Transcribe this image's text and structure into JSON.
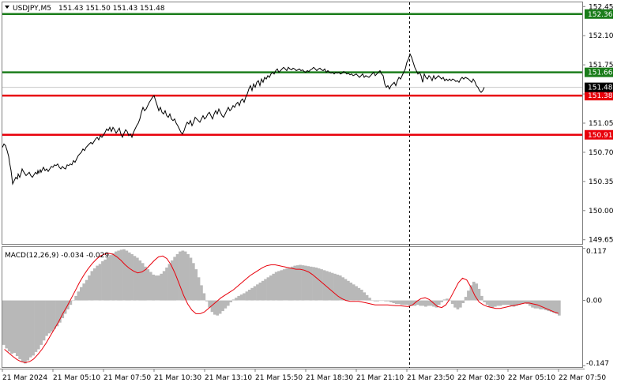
{
  "header": {
    "symbol_label": "USDJPY,M5",
    "ohlc_label": "151.43 151.50 151.43 151.48",
    "macd_label": "MACD(12,26,9) -0.034 -0.029"
  },
  "colors": {
    "price_line": "#000000",
    "support_line": "#e8000b",
    "resistance_line": "#1b7d1b",
    "macd_hist": "#b8b8b8",
    "macd_signal": "#e8000b",
    "grid_border": "#808080"
  },
  "chart_data": [
    {
      "type": "line",
      "symbol": "USDJPY",
      "timeframe": "M5",
      "y_ticks": [
        "152.45",
        "152.10",
        "151.75",
        "151.40",
        "151.05",
        "150.70",
        "150.35",
        "150.00",
        "149.65"
      ],
      "ylim": [
        149.6,
        152.5
      ],
      "x_ticks": [
        "21 Mar 2024",
        "21 Mar 05:10",
        "21 Mar 07:50",
        "21 Mar 10:30",
        "21 Mar 13:10",
        "21 Mar 15:50",
        "21 Mar 18:30",
        "21 Mar 21:10",
        "21 Mar 23:50",
        "22 Mar 02:30",
        "22 Mar 05:10",
        "22 Mar 07:50"
      ],
      "current_price_label": "151.48",
      "current_price": 151.48,
      "levels": [
        {
          "value": 152.36,
          "label": "152.36",
          "kind": "resistance"
        },
        {
          "value": 151.66,
          "label": "151.66",
          "kind": "resistance"
        },
        {
          "value": 151.38,
          "label": "151.38",
          "kind": "support"
        },
        {
          "value": 150.91,
          "label": "150.91",
          "kind": "support"
        }
      ],
      "x": [
        0,
        2,
        4,
        6,
        8,
        9,
        11,
        12,
        13,
        15,
        17,
        19,
        20,
        22,
        24,
        25,
        26,
        28,
        30,
        32,
        34,
        36,
        38,
        40,
        42,
        44,
        45,
        46,
        47,
        48,
        49,
        50,
        52,
        54,
        56,
        58,
        60,
        62,
        64,
        66,
        68,
        70,
        72,
        74,
        76,
        78,
        80,
        82,
        84,
        86,
        88,
        90,
        92,
        94,
        96,
        98,
        100,
        102,
        104,
        106,
        108,
        110,
        112,
        114,
        116,
        118,
        120,
        122,
        124,
        126,
        128,
        130,
        132,
        134,
        136,
        138,
        140,
        142,
        144,
        146,
        148,
        150,
        152,
        154,
        156,
        158,
        160,
        162,
        164,
        166,
        168,
        170,
        172,
        174,
        176,
        178,
        180,
        182,
        184,
        186,
        188,
        190,
        192,
        194,
        196,
        198,
        200,
        202,
        204,
        206,
        208,
        210,
        212,
        214,
        216,
        218,
        220,
        222,
        224,
        226,
        228,
        230,
        232,
        234,
        236,
        238,
        240,
        242,
        244,
        246,
        248,
        250,
        252,
        254,
        256,
        258,
        260,
        262,
        264,
        266,
        268,
        270,
        272,
        274,
        276,
        278,
        280,
        282,
        284,
        286,
        288,
        290,
        292,
        294,
        296,
        298,
        300,
        302,
        304,
        306,
        308,
        310,
        312,
        314,
        316,
        318,
        320,
        322,
        324,
        326,
        328,
        330,
        332,
        334,
        336,
        338,
        340,
        342,
        344,
        346,
        348,
        350,
        352,
        354,
        356,
        358,
        360,
        362,
        364,
        366,
        368,
        370,
        372,
        374,
        376,
        378,
        380,
        382,
        384,
        386,
        388,
        390,
        392,
        394,
        396,
        398,
        400,
        402,
        404,
        406,
        408,
        410,
        412,
        414,
        416,
        418,
        420,
        422,
        424,
        426,
        428,
        430,
        432,
        434,
        436,
        438,
        440,
        442,
        444,
        446,
        448,
        450,
        452,
        454,
        456,
        458,
        460,
        462,
        464,
        466,
        468,
        470,
        472,
        474,
        476,
        478,
        480,
        482,
        484,
        486,
        488,
        490,
        492,
        494,
        496,
        498,
        500,
        502,
        504,
        506,
        508,
        510,
        512,
        514,
        516,
        518,
        520,
        522,
        524,
        526,
        528,
        530,
        532,
        534,
        536,
        538,
        540,
        542,
        544,
        546,
        548,
        550,
        552,
        554,
        556,
        558,
        560,
        562,
        564,
        566,
        568,
        570,
        572,
        574,
        576,
        578,
        580,
        582,
        584,
        586,
        588,
        590,
        592,
        594,
        596,
        598,
        600,
        602,
        604,
        606,
        608,
        610,
        612,
        614,
        616,
        618,
        620,
        622,
        624,
        626,
        628,
        630,
        632,
        634,
        636,
        638,
        640,
        642,
        644,
        646,
        648,
        650,
        652,
        654,
        656,
        658,
        660,
        662,
        664,
        666,
        668,
        670,
        672,
        674,
        676,
        678,
        680,
        682,
        684,
        686,
        688,
        690,
        692,
        694,
        696,
        698,
        700,
        702,
        704,
        706,
        708,
        710,
        712,
        714,
        716,
        718,
        720,
        722,
        724,
        726
      ],
      "price": [
        150.76,
        150.8,
        150.78,
        150.72,
        150.65,
        150.58,
        150.48,
        150.4,
        150.32,
        150.36,
        150.4,
        150.38,
        150.44,
        150.4,
        150.46,
        150.5,
        150.48,
        150.45,
        150.42,
        150.44,
        150.46,
        150.42,
        150.4,
        150.43,
        150.46,
        150.44,
        150.48,
        150.45,
        150.47,
        150.49,
        150.46,
        150.48,
        150.52,
        150.48,
        150.5,
        150.47,
        150.5,
        150.53,
        150.52,
        150.55,
        150.54,
        150.56,
        150.52,
        150.5,
        150.53,
        150.51,
        150.5,
        150.55,
        150.54,
        150.56,
        150.55,
        150.6,
        150.58,
        150.62,
        150.66,
        150.68,
        150.7,
        150.74,
        150.72,
        150.76,
        150.78,
        150.8,
        150.82,
        150.8,
        150.83,
        150.86,
        150.88,
        150.85,
        150.9,
        150.88,
        150.91,
        150.94,
        150.98,
        150.96,
        151.0,
        150.95,
        151.0,
        150.97,
        150.93,
        150.96,
        150.99,
        150.92,
        150.88,
        150.93,
        150.97,
        150.95,
        150.9,
        150.92,
        150.88,
        150.94,
        150.98,
        151.02,
        151.05,
        151.1,
        151.18,
        151.24,
        151.2,
        151.22,
        151.26,
        151.3,
        151.33,
        151.36,
        151.38,
        151.32,
        151.26,
        151.2,
        151.24,
        151.18,
        151.16,
        151.2,
        151.14,
        151.12,
        151.16,
        151.1,
        151.08,
        151.1,
        151.05,
        151.02,
        150.98,
        150.94,
        150.92,
        150.96,
        151.02,
        151.06,
        151.04,
        151.08,
        151.02,
        151.06,
        151.12,
        151.1,
        151.08,
        151.06,
        151.1,
        151.14,
        151.1,
        151.12,
        151.16,
        151.18,
        151.14,
        151.1,
        151.16,
        151.2,
        151.16,
        151.22,
        151.18,
        151.14,
        151.12,
        151.16,
        151.2,
        151.24,
        151.2,
        151.22,
        151.26,
        151.24,
        151.28,
        151.3,
        151.26,
        151.32,
        151.34,
        151.3,
        151.36,
        151.4,
        151.46,
        151.5,
        151.44,
        151.52,
        151.48,
        151.54,
        151.56,
        151.5,
        151.58,
        151.54,
        151.6,
        151.58,
        151.62,
        151.6,
        151.64,
        151.66,
        151.64,
        151.68,
        151.7,
        151.66,
        151.68,
        151.7,
        151.72,
        151.7,
        151.68,
        151.72,
        151.7,
        151.69,
        151.71,
        151.7,
        151.68,
        151.69,
        151.7,
        151.68,
        151.69,
        151.67,
        151.66,
        151.68,
        151.67,
        151.69,
        151.7,
        151.72,
        151.7,
        151.68,
        151.7,
        151.71,
        151.69,
        151.68,
        151.7,
        151.66,
        151.68,
        151.66,
        151.65,
        151.66,
        151.64,
        151.66,
        151.65,
        151.66,
        151.64,
        151.65,
        151.67,
        151.66,
        151.64,
        151.65,
        151.63,
        151.64,
        151.62,
        151.63,
        151.64,
        151.62,
        151.6,
        151.62,
        151.64,
        151.6,
        151.62,
        151.61,
        151.6,
        151.62,
        151.64,
        151.66,
        151.62,
        151.64,
        151.66,
        151.68,
        151.64,
        151.62,
        151.52,
        151.48,
        151.5,
        151.46,
        151.5,
        151.52,
        151.54,
        151.5,
        151.56,
        151.6,
        151.58,
        151.62,
        151.66,
        151.7,
        151.78,
        151.82,
        151.88,
        151.84,
        151.78,
        151.72,
        151.68,
        151.64,
        151.66,
        151.62,
        151.54,
        151.64,
        151.6,
        151.58,
        151.62,
        151.6,
        151.56,
        151.62,
        151.58,
        151.6,
        151.62,
        151.6,
        151.58,
        151.6,
        151.56,
        151.58,
        151.56,
        151.58,
        151.56,
        151.58,
        151.57,
        151.55,
        151.56,
        151.54,
        151.58,
        151.6,
        151.58,
        151.6,
        151.59,
        151.58,
        151.56,
        151.54,
        151.58,
        151.55,
        151.5,
        151.48,
        151.44,
        151.42,
        151.44,
        151.48
      ],
      "macd": [
        -0.1,
        -0.108,
        -0.115,
        -0.12,
        -0.118,
        -0.125,
        -0.132,
        -0.138,
        -0.142,
        -0.135,
        -0.128,
        -0.124,
        -0.116,
        -0.11,
        -0.1,
        -0.09,
        -0.08,
        -0.074,
        -0.07,
        -0.064,
        -0.058,
        -0.05,
        -0.04,
        -0.03,
        -0.02,
        -0.01,
        0.0,
        0.01,
        0.02,
        0.03,
        0.038,
        0.046,
        0.056,
        0.066,
        0.072,
        0.078,
        0.082,
        0.088,
        0.092,
        0.098,
        0.102,
        0.106,
        0.11,
        0.112,
        0.114,
        0.115,
        0.112,
        0.108,
        0.104,
        0.1,
        0.096,
        0.09,
        0.084,
        0.076,
        0.07,
        0.064,
        0.058,
        0.056,
        0.056,
        0.06,
        0.066,
        0.074,
        0.082,
        0.09,
        0.098,
        0.104,
        0.11,
        0.112,
        0.11,
        0.104,
        0.096,
        0.084,
        0.07,
        0.052,
        0.034,
        0.016,
        -0.002,
        -0.016,
        -0.026,
        -0.032,
        -0.034,
        -0.03,
        -0.024,
        -0.018,
        -0.012,
        -0.004,
        0.002,
        0.006,
        0.01,
        0.013,
        0.016,
        0.02,
        0.024,
        0.028,
        0.032,
        0.036,
        0.04,
        0.044,
        0.048,
        0.052,
        0.056,
        0.06,
        0.064,
        0.066,
        0.068,
        0.07,
        0.072,
        0.074,
        0.076,
        0.078,
        0.079,
        0.08,
        0.079,
        0.078,
        0.077,
        0.076,
        0.075,
        0.074,
        0.072,
        0.07,
        0.068,
        0.066,
        0.064,
        0.062,
        0.06,
        0.058,
        0.056,
        0.052,
        0.048,
        0.044,
        0.04,
        0.036,
        0.032,
        0.028,
        0.024,
        0.018,
        0.012,
        0.006,
        0.0,
        -0.002,
        -0.002,
        0.0,
        0.0,
        -0.002,
        -0.002,
        -0.004,
        -0.006,
        -0.008,
        -0.008,
        -0.01,
        -0.01,
        -0.01,
        -0.012,
        -0.012,
        -0.012,
        -0.01,
        -0.012,
        -0.012,
        -0.014,
        -0.012,
        -0.012,
        -0.014,
        -0.016,
        -0.01,
        -0.004,
        0.002,
        0.004,
        0.0,
        -0.008,
        -0.016,
        -0.02,
        -0.016,
        -0.006,
        0.008,
        0.022,
        0.034,
        0.042,
        0.038,
        0.026,
        0.01,
        -0.004,
        -0.01,
        -0.014,
        -0.016,
        -0.014,
        -0.012,
        -0.012,
        -0.01,
        -0.01,
        -0.01,
        -0.012,
        -0.014,
        -0.012,
        -0.01,
        -0.008,
        -0.006,
        -0.008,
        -0.012,
        -0.016,
        -0.018,
        -0.018,
        -0.02,
        -0.02,
        -0.022,
        -0.024,
        -0.026,
        -0.028,
        -0.03,
        -0.034
      ],
      "macd_x_step": 3.38,
      "signal": [
        -0.11,
        -0.118,
        -0.126,
        -0.133,
        -0.138,
        -0.14,
        -0.138,
        -0.132,
        -0.122,
        -0.11,
        -0.096,
        -0.08,
        -0.064,
        -0.048,
        -0.03,
        -0.014,
        0.004,
        0.022,
        0.04,
        0.056,
        0.07,
        0.082,
        0.092,
        0.1,
        0.104,
        0.106,
        0.104,
        0.098,
        0.09,
        0.08,
        0.072,
        0.066,
        0.062,
        0.064,
        0.07,
        0.08,
        0.09,
        0.098,
        0.1,
        0.094,
        0.08,
        0.06,
        0.036,
        0.012,
        -0.008,
        -0.022,
        -0.03,
        -0.03,
        -0.026,
        -0.018,
        -0.01,
        -0.002,
        0.006,
        0.012,
        0.018,
        0.024,
        0.032,
        0.04,
        0.048,
        0.056,
        0.062,
        0.068,
        0.074,
        0.078,
        0.08,
        0.08,
        0.078,
        0.076,
        0.074,
        0.072,
        0.07,
        0.07,
        0.068,
        0.064,
        0.058,
        0.05,
        0.042,
        0.034,
        0.026,
        0.018,
        0.01,
        0.004,
        0.0,
        -0.002,
        -0.002,
        -0.002,
        -0.004,
        -0.006,
        -0.008,
        -0.01,
        -0.01,
        -0.01,
        -0.01,
        -0.011,
        -0.012,
        -0.012,
        -0.013,
        -0.014,
        -0.01,
        -0.002,
        0.004,
        0.006,
        0.002,
        -0.006,
        -0.014,
        -0.016,
        -0.01,
        0.004,
        0.022,
        0.04,
        0.05,
        0.046,
        0.03,
        0.01,
        -0.004,
        -0.01,
        -0.014,
        -0.016,
        -0.018,
        -0.018,
        -0.016,
        -0.014,
        -0.012,
        -0.01,
        -0.008,
        -0.006,
        -0.006,
        -0.008,
        -0.01,
        -0.014,
        -0.018,
        -0.022,
        -0.026,
        -0.029
      ],
      "macd_y_ticks": [
        "0.117",
        "0.00",
        "-0.147"
      ],
      "macd_ylim": [
        -0.15,
        0.12
      ]
    }
  ]
}
